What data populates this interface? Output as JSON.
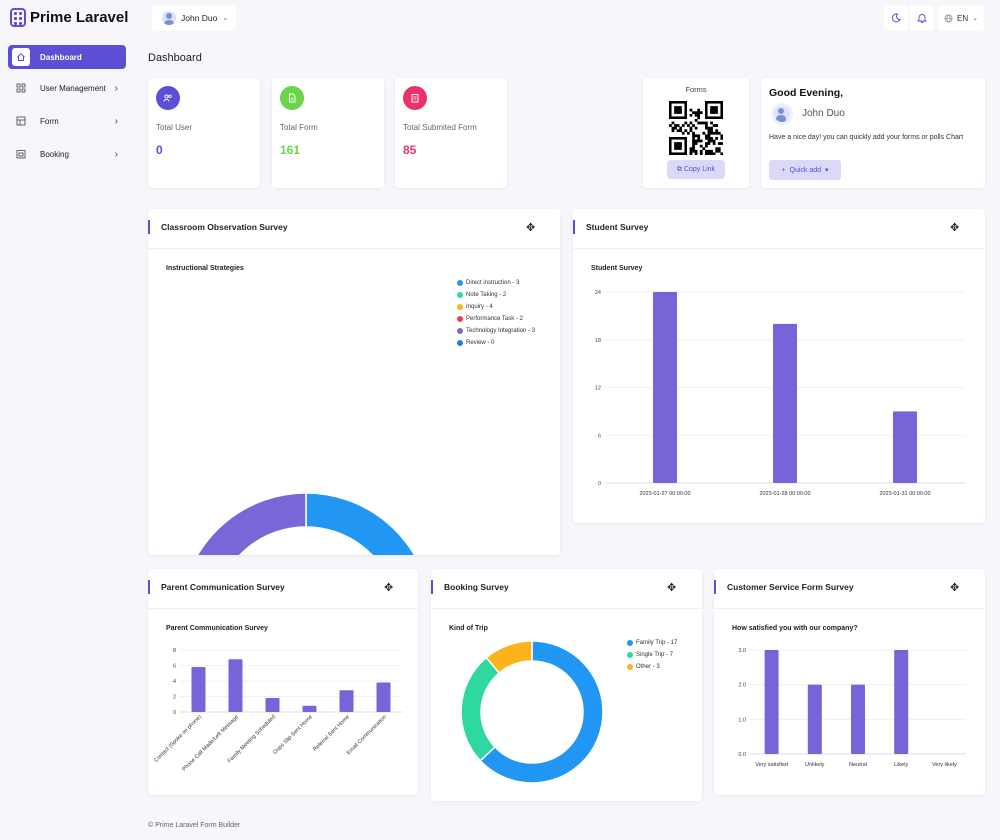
{
  "brand": {
    "name": "Prime Laravel"
  },
  "topbar": {
    "user_name": "John Duo",
    "language": "EN"
  },
  "sidebar": {
    "items": [
      {
        "label": "Dashboard"
      },
      {
        "label": "User Management"
      },
      {
        "label": "Form"
      },
      {
        "label": "Booking"
      }
    ]
  },
  "page": {
    "title": "Dashboard"
  },
  "stats": [
    {
      "label": "Total User",
      "value": "0",
      "color": "#5b4fd6"
    },
    {
      "label": "Total Form",
      "value": "161",
      "color": "#6cd44a"
    },
    {
      "label": "Total Submited Form",
      "value": "85",
      "color": "#e8336a"
    }
  ],
  "forms_card": {
    "title": "Forms",
    "copy_label": "Copy Link"
  },
  "greeting": {
    "title": "Good Evening,",
    "name": "John Duo",
    "message": "Have a nice day! you can quickly add your forms or polls Chart",
    "quick_add_label": "Quick add"
  },
  "panels": {
    "classroom": "Classroom Observation Survey",
    "student": "Student Survey",
    "parent": "Parent Communication Survey",
    "booking": "Booking Survey",
    "customer": "Customer Service Form Survey"
  },
  "footer": "© Prime Laravel Form Builder",
  "chart_data": [
    {
      "type": "pie",
      "title": "Instructional Strategies",
      "categories": [
        "Direct instruction - 3",
        "Note Taking - 2",
        "Inquiry - 4",
        "Performance Task - 2",
        "Technology Integration - 3",
        "Review - 0"
      ],
      "values": [
        3,
        2,
        4,
        2,
        3,
        0
      ],
      "colors": [
        "#2196f3",
        "#2fd8a0",
        "#ffb31a",
        "#f23c5c",
        "#7a66d6",
        "#1e7fd8"
      ],
      "legend": "top-right"
    },
    {
      "type": "bar",
      "title": "Student Survey",
      "categories": [
        "2023-01-27 00:00:00",
        "2023-01-28 00:00:00",
        "2023-01-31 00:00:00"
      ],
      "values": [
        24,
        20,
        9
      ],
      "yticks": [
        "0",
        "6",
        "12",
        "18",
        "24"
      ],
      "ylim": [
        0,
        24
      ],
      "color": "#7565d8",
      "grid": true
    },
    {
      "type": "bar",
      "title": "Parent Communication Survey",
      "categories": [
        "Contact (Spoke on phone)",
        "Phone Call Made/Left Message",
        "Family Meeting Scheduled",
        "Oops Slip Sent Home",
        "Referral Sent Home",
        "Email Communication"
      ],
      "values": [
        5.8,
        6.8,
        1.8,
        0.8,
        2.8,
        3.8
      ],
      "yticks": [
        "0",
        "2",
        "4",
        "6",
        "8"
      ],
      "ylim": [
        0,
        8
      ],
      "color": "#7565d8",
      "grid": true
    },
    {
      "type": "pie",
      "title": "Kind of Trip",
      "categories": [
        "Family Trip - 17",
        "Single Trip - 7",
        "Other - 3"
      ],
      "values": [
        17,
        7,
        3
      ],
      "colors": [
        "#2196f3",
        "#2fd8a0",
        "#ffb31a"
      ],
      "legend": "top-right"
    },
    {
      "type": "bar",
      "title": "How satisfied you with our company?",
      "categories": [
        "Very satisfied",
        "Unlikely",
        "Neutral",
        "Likely",
        "Very likely"
      ],
      "values": [
        3,
        2,
        2,
        3,
        0
      ],
      "yticks": [
        "0.0",
        "1.0",
        "2.0",
        "3.0"
      ],
      "ylim": [
        0,
        3
      ],
      "color": "#7565d8",
      "grid": true
    }
  ]
}
